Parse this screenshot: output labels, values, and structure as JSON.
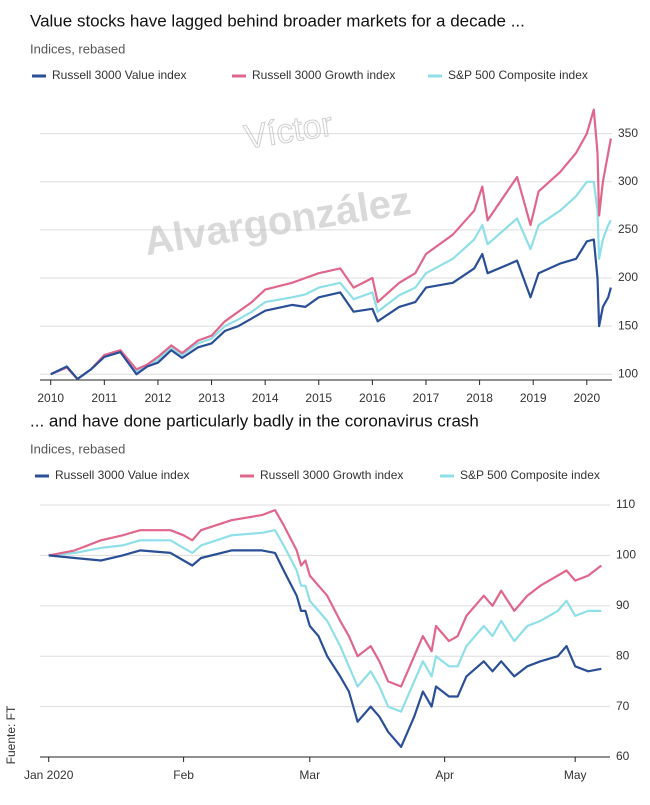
{
  "chart_data": [
    {
      "type": "line",
      "title": "Value stocks have lagged behind broader markets for a decade ...",
      "subtitle": "Indices, rebased",
      "x": [
        2010,
        2010.3,
        2010.5,
        2010.75,
        2011,
        2011.3,
        2011.6,
        2011.8,
        2012,
        2012.25,
        2012.45,
        2012.75,
        2013,
        2013.25,
        2013.5,
        2013.75,
        2014,
        2014.5,
        2014.75,
        2015,
        2015.4,
        2015.65,
        2016,
        2016.1,
        2016.5,
        2016.8,
        2017,
        2017.5,
        2017.9,
        2018.05,
        2018.15,
        2018.7,
        2018.95,
        2019.1,
        2019.5,
        2019.8,
        2020,
        2020.13,
        2020.2,
        2020.23,
        2020.3,
        2020.4,
        2020.45
      ],
      "series": [
        {
          "name": "Russell 3000 Value index",
          "color": "#2a4f96",
          "values": [
            100,
            108,
            95,
            105,
            118,
            123,
            100,
            108,
            112,
            125,
            117,
            128,
            132,
            145,
            150,
            158,
            166,
            172,
            170,
            180,
            185,
            165,
            168,
            155,
            170,
            175,
            190,
            195,
            210,
            225,
            205,
            218,
            180,
            205,
            215,
            220,
            238,
            240,
            200,
            150,
            170,
            180,
            190
          ]
        },
        {
          "name": "Russell 3000 Growth index",
          "color": "#e0668c",
          "values": [
            100,
            107,
            95,
            105,
            120,
            125,
            105,
            110,
            118,
            130,
            122,
            135,
            140,
            155,
            165,
            175,
            188,
            195,
            200,
            205,
            210,
            190,
            200,
            175,
            195,
            205,
            225,
            245,
            270,
            295,
            260,
            305,
            255,
            290,
            310,
            330,
            350,
            375,
            330,
            265,
            300,
            330,
            345
          ]
        },
        {
          "name": "S&P 500 Composite index",
          "color": "#8fdfe8",
          "values": [
            100,
            107,
            95,
            105,
            119,
            124,
            103,
            109,
            115,
            128,
            120,
            132,
            137,
            150,
            157,
            165,
            175,
            180,
            183,
            190,
            195,
            178,
            185,
            165,
            182,
            190,
            205,
            220,
            240,
            255,
            235,
            262,
            230,
            255,
            270,
            285,
            300,
            300,
            270,
            220,
            240,
            255,
            260
          ]
        }
      ],
      "xlim": [
        2009.8,
        2020.47
      ],
      "xticks": [
        2010,
        2011,
        2012,
        2013,
        2014,
        2015,
        2016,
        2017,
        2018,
        2019,
        2020
      ],
      "ylim": [
        94,
        385
      ],
      "yticks": [
        100,
        150,
        200,
        250,
        300,
        350
      ],
      "grid": true
    },
    {
      "type": "line",
      "title": "... and have done particularly badly in the coronavirus crash",
      "subtitle": "Indices, rebased",
      "x": [
        1,
        7,
        13,
        18,
        22,
        29,
        32,
        34,
        36,
        43,
        50,
        53,
        55,
        58,
        59,
        60,
        61,
        63,
        65,
        68,
        70,
        72,
        75,
        77,
        79,
        82,
        85,
        87,
        89,
        90,
        93,
        95,
        97,
        101,
        103,
        105,
        108,
        111,
        114,
        118,
        120,
        122,
        125,
        128
      ],
      "series": [
        {
          "name": "Russell 3000 Value index",
          "color": "#2a4f96",
          "values": [
            100,
            99.5,
            99,
            100,
            101,
            100.5,
            99,
            98,
            99.5,
            101,
            101,
            100.5,
            97,
            92,
            89,
            89,
            86,
            84,
            80,
            76,
            73,
            67,
            70,
            68,
            65,
            62,
            68,
            73,
            70,
            74,
            72,
            72,
            76,
            79,
            77,
            79,
            76,
            78,
            79,
            80,
            82,
            78,
            77,
            77.5
          ]
        },
        {
          "name": "Russell 3000 Growth index",
          "color": "#e0668c",
          "values": [
            100,
            101,
            103,
            104,
            105,
            105,
            104,
            103,
            105,
            107,
            108,
            109,
            106,
            101,
            98,
            99,
            96,
            94,
            92,
            87,
            84,
            80,
            82,
            79,
            75,
            74,
            80,
            84,
            81,
            86,
            83,
            84,
            88,
            92,
            90,
            93,
            89,
            92,
            94,
            96,
            97,
            95,
            96,
            98
          ]
        },
        {
          "name": "S&P 500 Composite index",
          "color": "#8fdfe8",
          "values": [
            100,
            100.5,
            101.5,
            102,
            103,
            103,
            101.5,
            100.5,
            102,
            104,
            104.5,
            105,
            102,
            97,
            94,
            94,
            91,
            89,
            87,
            82,
            78,
            74,
            77,
            74,
            70,
            69,
            75,
            79,
            76,
            80,
            78,
            78,
            82,
            86,
            84,
            87,
            83,
            86,
            87,
            89,
            91,
            88,
            89,
            89
          ]
        }
      ],
      "xlim": [
        -1,
        130
      ],
      "xticks": [
        {
          "value": 1,
          "label": "Jan 2020"
        },
        {
          "value": 32,
          "label": "Feb"
        },
        {
          "value": 61,
          "label": "Mar"
        },
        {
          "value": 92,
          "label": "Apr"
        },
        {
          "value": 122,
          "label": "May"
        }
      ],
      "ylim": [
        60,
        111
      ],
      "yticks": [
        60,
        70,
        80,
        90,
        100,
        110
      ],
      "grid": true
    }
  ],
  "watermark": {
    "line1": "Víctor",
    "line2": "Alvargonzález"
  },
  "source": "Fuente: FT"
}
